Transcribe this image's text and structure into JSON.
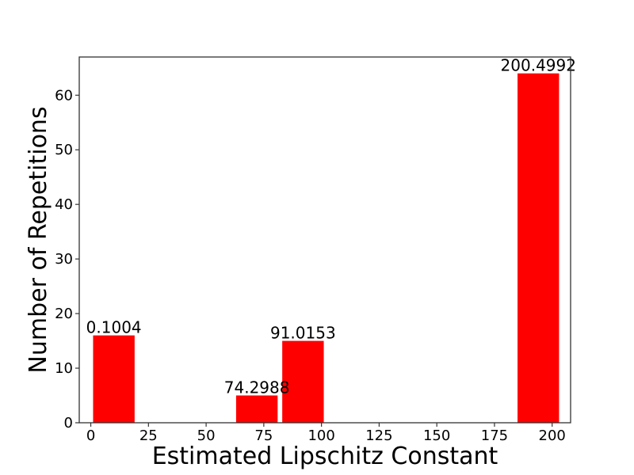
{
  "chart_data": {
    "type": "bar",
    "xlabel": "Estimated Lipschitz Constant",
    "ylabel": "Number of Repetitions",
    "xlim": [
      -5,
      208
    ],
    "ylim": [
      0,
      67
    ],
    "xticks": [
      0,
      25,
      50,
      75,
      100,
      125,
      150,
      175,
      200
    ],
    "yticks": [
      0,
      10,
      20,
      30,
      40,
      50,
      60
    ],
    "bar_width": 18,
    "bar_color": "#ff0000",
    "grid": false,
    "bars": [
      {
        "x": 10,
        "value": 16,
        "label": "0.1004"
      },
      {
        "x": 72,
        "value": 5,
        "label": "74.2988"
      },
      {
        "x": 92,
        "value": 15,
        "label": "91.0153"
      },
      {
        "x": 194,
        "value": 64,
        "label": "200.4992"
      }
    ]
  }
}
